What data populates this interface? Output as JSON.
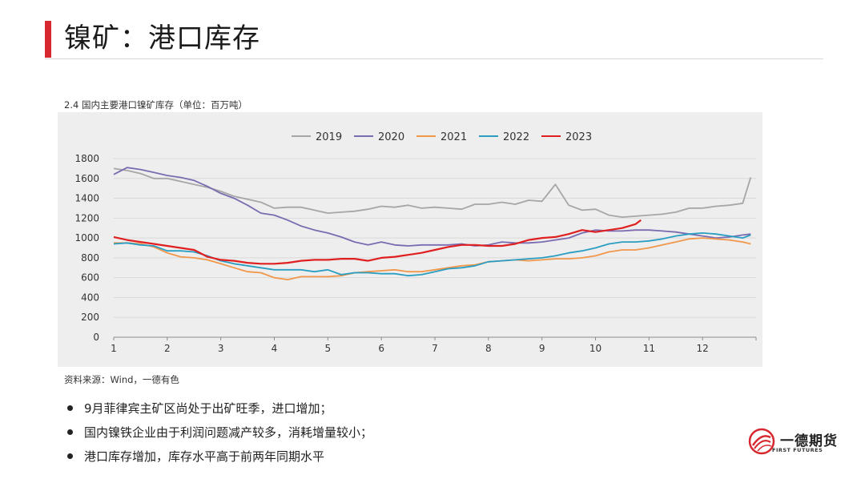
{
  "header": {
    "title": "镍矿：港口库存"
  },
  "chart": {
    "caption": "2.4 国内主要港口镍矿库存（单位：百万吨）",
    "source": "资料来源：Wind，一德有色"
  },
  "bullets": [
    "9月菲律宾主矿区尚处于出矿旺季，进口增加；",
    "国内镍铁企业由于利润问题减产较多，消耗增量较小；",
    "港口库存增加，库存水平高于前两年同期水平"
  ],
  "logo": {
    "name": "一德期货",
    "subtitle": "FIRST FUTURES"
  },
  "colors": {
    "accent": "#d7282f",
    "plot_background": "#eeeeee"
  },
  "chart_data": {
    "type": "line",
    "title": "2.4 国内主要港口镍矿库存（单位：百万吨）",
    "xlabel": "",
    "ylabel": "",
    "xlim": [
      1,
      13
    ],
    "ylim": [
      0,
      1800
    ],
    "yticks": [
      0,
      200,
      400,
      600,
      800,
      1000,
      1200,
      1400,
      1600,
      1800
    ],
    "xticks": [
      1,
      2,
      3,
      4,
      5,
      6,
      7,
      8,
      9,
      10,
      11,
      12
    ],
    "grid": "horizontal",
    "legend": "top",
    "series": [
      {
        "name": "2019",
        "color": "#a6a6a6",
        "x": [
          1.0,
          1.25,
          1.5,
          1.75,
          2.0,
          2.25,
          2.5,
          2.75,
          3.0,
          3.25,
          3.5,
          3.75,
          4.0,
          4.25,
          4.5,
          4.75,
          5.0,
          5.25,
          5.5,
          5.75,
          6.0,
          6.25,
          6.5,
          6.75,
          7.0,
          7.25,
          7.5,
          7.75,
          8.0,
          8.25,
          8.5,
          8.75,
          9.0,
          9.25,
          9.5,
          9.75,
          10.0,
          10.25,
          10.5,
          10.75,
          11.0,
          11.25,
          11.5,
          11.75,
          12.0,
          12.25,
          12.5,
          12.75,
          12.9
        ],
        "values": [
          1700,
          1680,
          1650,
          1600,
          1600,
          1570,
          1540,
          1510,
          1470,
          1420,
          1390,
          1360,
          1300,
          1310,
          1310,
          1280,
          1250,
          1260,
          1270,
          1290,
          1320,
          1310,
          1330,
          1300,
          1310,
          1300,
          1290,
          1340,
          1340,
          1360,
          1340,
          1380,
          1370,
          1540,
          1330,
          1280,
          1290,
          1230,
          1210,
          1220,
          1230,
          1240,
          1260,
          1300,
          1300,
          1320,
          1330,
          1350,
          1610
        ]
      },
      {
        "name": "2020",
        "color": "#7b6bb0",
        "x": [
          1.0,
          1.25,
          1.5,
          1.75,
          2.0,
          2.25,
          2.5,
          2.75,
          3.0,
          3.25,
          3.5,
          3.75,
          4.0,
          4.25,
          4.5,
          4.75,
          5.0,
          5.25,
          5.5,
          5.75,
          6.0,
          6.25,
          6.5,
          6.75,
          7.0,
          7.25,
          7.5,
          7.75,
          8.0,
          8.25,
          8.5,
          8.75,
          9.0,
          9.25,
          9.5,
          9.75,
          10.0,
          10.25,
          10.5,
          10.75,
          11.0,
          11.25,
          11.5,
          11.75,
          12.0,
          12.25,
          12.5,
          12.75,
          12.9
        ],
        "values": [
          1640,
          1710,
          1690,
          1660,
          1630,
          1610,
          1580,
          1520,
          1450,
          1400,
          1330,
          1250,
          1230,
          1180,
          1120,
          1080,
          1050,
          1010,
          960,
          930,
          960,
          930,
          920,
          930,
          930,
          930,
          940,
          920,
          930,
          960,
          950,
          950,
          960,
          980,
          1000,
          1050,
          1080,
          1070,
          1070,
          1080,
          1080,
          1070,
          1060,
          1040,
          1020,
          1000,
          1010,
          1030,
          1040
        ]
      },
      {
        "name": "2021",
        "color": "#f0974b",
        "x": [
          1.0,
          1.25,
          1.5,
          1.75,
          2.0,
          2.25,
          2.5,
          2.75,
          3.0,
          3.25,
          3.5,
          3.75,
          4.0,
          4.25,
          4.5,
          4.75,
          5.0,
          5.25,
          5.5,
          5.75,
          6.0,
          6.25,
          6.5,
          6.75,
          7.0,
          7.25,
          7.5,
          7.75,
          8.0,
          8.25,
          8.5,
          8.75,
          9.0,
          9.25,
          9.5,
          9.75,
          10.0,
          10.25,
          10.5,
          10.75,
          11.0,
          11.25,
          11.5,
          11.75,
          12.0,
          12.25,
          12.5,
          12.75,
          12.9
        ],
        "values": [
          950,
          950,
          940,
          910,
          850,
          810,
          800,
          780,
          740,
          700,
          660,
          650,
          600,
          580,
          610,
          610,
          610,
          620,
          650,
          660,
          670,
          680,
          660,
          660,
          680,
          700,
          720,
          730,
          760,
          770,
          780,
          770,
          780,
          790,
          790,
          800,
          820,
          860,
          880,
          880,
          900,
          930,
          960,
          990,
          1000,
          990,
          980,
          960,
          940
        ]
      },
      {
        "name": "2022",
        "color": "#2a9ec2",
        "x": [
          1.0,
          1.25,
          1.5,
          1.75,
          2.0,
          2.25,
          2.5,
          2.75,
          3.0,
          3.25,
          3.5,
          3.75,
          4.0,
          4.25,
          4.5,
          4.75,
          5.0,
          5.25,
          5.5,
          5.75,
          6.0,
          6.25,
          6.5,
          6.75,
          7.0,
          7.25,
          7.5,
          7.75,
          8.0,
          8.25,
          8.5,
          8.75,
          9.0,
          9.25,
          9.5,
          9.75,
          10.0,
          10.25,
          10.5,
          10.75,
          11.0,
          11.25,
          11.5,
          11.75,
          12.0,
          12.25,
          12.5,
          12.75,
          12.9
        ],
        "values": [
          940,
          950,
          930,
          920,
          870,
          870,
          860,
          820,
          770,
          740,
          720,
          700,
          680,
          680,
          680,
          660,
          680,
          630,
          650,
          650,
          640,
          640,
          620,
          630,
          660,
          690,
          700,
          720,
          760,
          770,
          780,
          790,
          800,
          820,
          850,
          870,
          900,
          940,
          960,
          960,
          970,
          990,
          1020,
          1040,
          1050,
          1040,
          1020,
          1000,
          1030
        ]
      },
      {
        "name": "2023",
        "color": "#e02020",
        "x": [
          1.0,
          1.25,
          1.5,
          1.75,
          2.0,
          2.25,
          2.5,
          2.75,
          3.0,
          3.25,
          3.5,
          3.75,
          4.0,
          4.25,
          4.5,
          4.75,
          5.0,
          5.25,
          5.5,
          5.75,
          6.0,
          6.25,
          6.5,
          6.75,
          7.0,
          7.25,
          7.5,
          7.75,
          8.0,
          8.25,
          8.5,
          8.75,
          9.0,
          9.25,
          9.5,
          9.75,
          10.0,
          10.25,
          10.5,
          10.75,
          10.85
        ],
        "values": [
          1010,
          980,
          960,
          940,
          920,
          900,
          880,
          810,
          780,
          770,
          750,
          740,
          740,
          750,
          770,
          780,
          780,
          790,
          790,
          770,
          800,
          810,
          830,
          850,
          880,
          910,
          930,
          930,
          920,
          920,
          940,
          980,
          1000,
          1010,
          1040,
          1080,
          1060,
          1080,
          1100,
          1140,
          1180
        ]
      }
    ]
  }
}
